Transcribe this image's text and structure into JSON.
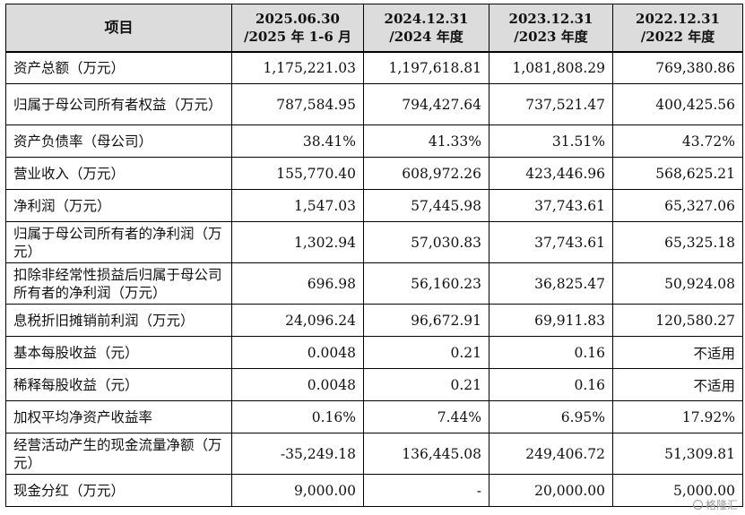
{
  "table": {
    "label_header": "项目",
    "columns": [
      {
        "line1": "2025.06.30",
        "line2": "/2025 年 1-6 月"
      },
      {
        "line1": "2024.12.31",
        "line2": "/2024 年度"
      },
      {
        "line1": "2023.12.31",
        "line2": "/2023 年度"
      },
      {
        "line1": "2022.12.31",
        "line2": "/2022 年度"
      }
    ],
    "rows": [
      {
        "label": "资产总额（万元）",
        "values": [
          "1,175,221.03",
          "1,197,618.81",
          "1,081,808.29",
          "769,380.86"
        ]
      },
      {
        "label": "归属于母公司所有者权益（万元）",
        "values": [
          "787,584.95",
          "794,427.64",
          "737,521.47",
          "400,425.56"
        ]
      },
      {
        "label": "资产负债率（母公司）",
        "values": [
          "38.41%",
          "41.33%",
          "31.51%",
          "43.72%"
        ]
      },
      {
        "label": "营业收入（万元）",
        "values": [
          "155,770.40",
          "608,972.26",
          "423,446.96",
          "568,625.21"
        ]
      },
      {
        "label": "净利润（万元）",
        "values": [
          "1,547.03",
          "57,445.98",
          "37,743.61",
          "65,327.06"
        ]
      },
      {
        "label": "归属于母公司所有者的净利润（万元）",
        "values": [
          "1,302.94",
          "57,030.83",
          "37,743.61",
          "65,325.18"
        ]
      },
      {
        "label": "扣除非经常性损益后归属于母公司所有者的净利润（万元）",
        "values": [
          "696.98",
          "56,160.23",
          "36,825.47",
          "50,924.08"
        ]
      },
      {
        "label": "息税折旧摊销前利润（万元）",
        "values": [
          "24,096.24",
          "96,672.91",
          "69,911.83",
          "120,580.27"
        ]
      },
      {
        "label": "基本每股收益（元）",
        "values": [
          "0.0048",
          "0.21",
          "0.16",
          "不适用"
        ]
      },
      {
        "label": "稀释每股收益（元）",
        "values": [
          "0.0048",
          "0.21",
          "0.16",
          "不适用"
        ]
      },
      {
        "label": "加权平均净资产收益率",
        "values": [
          "0.16%",
          "7.44%",
          "6.95%",
          "17.92%"
        ]
      },
      {
        "label": "经营活动产生的现金流量净额（万元）",
        "values": [
          "-35,249.18",
          "136,445.08",
          "249,406.72",
          "51,309.81"
        ]
      },
      {
        "label": "现金分红（万元）",
        "values": [
          "9,000.00",
          "-",
          "20,000.00",
          "5,000.00"
        ]
      }
    ]
  },
  "watermark": {
    "text": "格隆汇"
  }
}
